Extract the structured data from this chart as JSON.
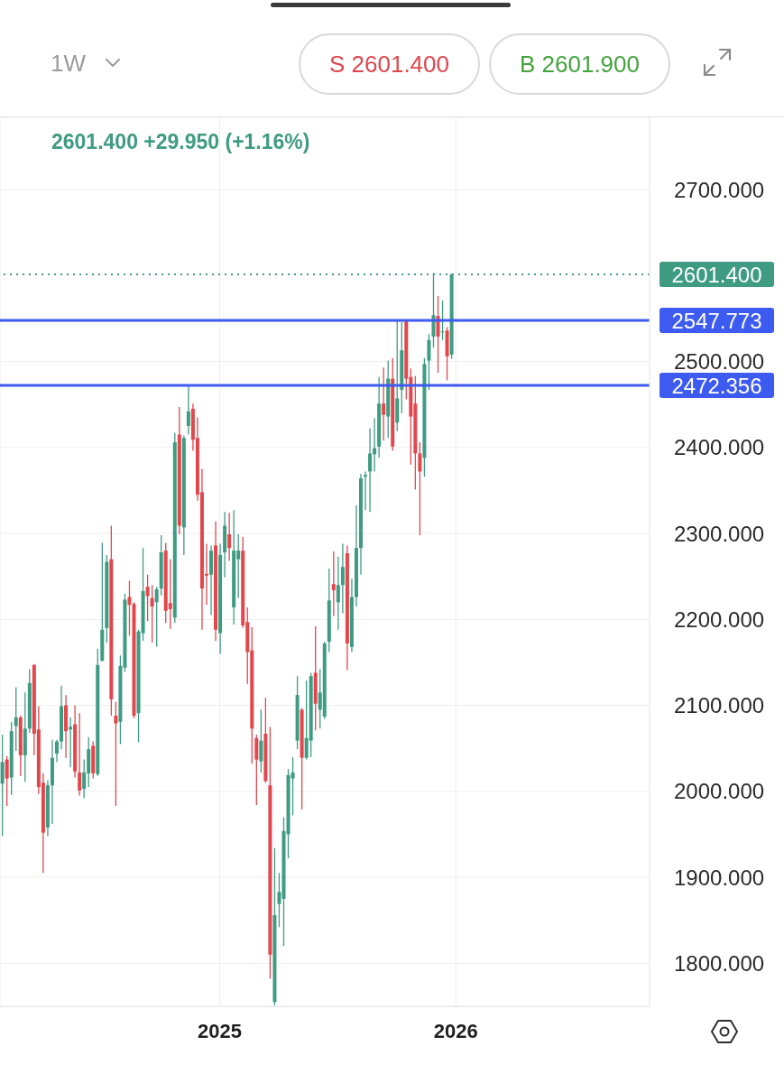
{
  "chart_data": {
    "type": "candlestick",
    "x": [
      "2024-02-05",
      "2024-02-12",
      "2024-02-19",
      "2024-02-26",
      "2024-03-04",
      "2024-03-11",
      "2024-03-18",
      "2024-03-25",
      "2024-04-01",
      "2024-04-08",
      "2024-04-15",
      "2024-04-22",
      "2024-04-29",
      "2024-05-06",
      "2024-05-13",
      "2024-05-20",
      "2024-05-27",
      "2024-06-03",
      "2024-06-10",
      "2024-06-17",
      "2024-06-24",
      "2024-07-01",
      "2024-07-08",
      "2024-07-15",
      "2024-07-22",
      "2024-07-29",
      "2024-08-05",
      "2024-08-12",
      "2024-08-19",
      "2024-08-26",
      "2024-09-02",
      "2024-09-09",
      "2024-09-16",
      "2024-09-23",
      "2024-09-30",
      "2024-10-07",
      "2024-10-14",
      "2024-10-21",
      "2024-10-28",
      "2024-11-04",
      "2024-11-11",
      "2024-11-18",
      "2024-11-25",
      "2024-12-02",
      "2024-12-09",
      "2024-12-16",
      "2024-12-23",
      "2024-12-30",
      "2025-01-06",
      "2025-01-13",
      "2025-01-20",
      "2025-01-27",
      "2025-02-03",
      "2025-02-10",
      "2025-02-17",
      "2025-02-24",
      "2025-03-03",
      "2025-03-10",
      "2025-03-17",
      "2025-03-24",
      "2025-03-31",
      "2025-04-07",
      "2025-04-14",
      "2025-04-21",
      "2025-04-28",
      "2025-05-05",
      "2025-05-12",
      "2025-05-19",
      "2025-05-26",
      "2025-06-02",
      "2025-06-09",
      "2025-06-16",
      "2025-06-23",
      "2025-06-30",
      "2025-07-07",
      "2025-07-14",
      "2025-07-21",
      "2025-07-28",
      "2025-08-04",
      "2025-08-11",
      "2025-08-18",
      "2025-08-25",
      "2025-09-01",
      "2025-09-08",
      "2025-09-15",
      "2025-09-22",
      "2025-09-29",
      "2025-10-06",
      "2025-10-13",
      "2025-10-20",
      "2025-10-27",
      "2025-11-03",
      "2025-11-10",
      "2025-11-17",
      "2025-11-24",
      "2025-12-01",
      "2025-12-08",
      "2025-12-15",
      "2025-12-22",
      "2025-12-29"
    ],
    "ohlc": [
      [
        2009,
        2066,
        1948,
        2034
      ],
      [
        2037,
        2041,
        1983,
        2015
      ],
      [
        2016,
        2081,
        1996,
        2070
      ],
      [
        2076,
        2121,
        2047,
        2086
      ],
      [
        2086,
        2088,
        2018,
        2042
      ],
      [
        2042,
        2115,
        2011,
        2073
      ],
      [
        2073,
        2142,
        2068,
        2126
      ],
      [
        2147,
        2148,
        2042,
        2067
      ],
      [
        2072,
        2099,
        1997,
        2005
      ],
      [
        2010,
        2021,
        1905,
        1952
      ],
      [
        1958,
        2013,
        1948,
        2007
      ],
      [
        2007,
        2060,
        1962,
        2039
      ],
      [
        2044,
        2060,
        2034,
        2058
      ],
      [
        2058,
        2123,
        2049,
        2099
      ],
      [
        2100,
        2112,
        2039,
        2070
      ],
      [
        2072,
        2086,
        2028,
        2075
      ],
      [
        2078,
        2100,
        2016,
        2023
      ],
      [
        2022,
        2091,
        1995,
        2001
      ],
      [
        2003,
        2037,
        1992,
        2022
      ],
      [
        2021,
        2063,
        2005,
        2049
      ],
      [
        2053,
        2058,
        2015,
        2021
      ],
      [
        2020,
        2166,
        2018,
        2147
      ],
      [
        2152,
        2289,
        2151,
        2188
      ],
      [
        2190,
        2275,
        2173,
        2267
      ],
      [
        2270,
        2309,
        2088,
        2107
      ],
      [
        2088,
        2104,
        1983,
        2079
      ],
      [
        2081,
        2158,
        2055,
        2146
      ],
      [
        2144,
        2230,
        2139,
        2223
      ],
      [
        2226,
        2245,
        2181,
        2217
      ],
      [
        2218,
        2220,
        2085,
        2088
      ],
      [
        2091,
        2188,
        2057,
        2186
      ],
      [
        2184,
        2283,
        2175,
        2233
      ],
      [
        2238,
        2252,
        2198,
        2227
      ],
      [
        2225,
        2240,
        2173,
        2215
      ],
      [
        2220,
        2238,
        2168,
        2235
      ],
      [
        2236,
        2298,
        2228,
        2278
      ],
      [
        2280,
        2289,
        2196,
        2210
      ],
      [
        2219,
        2270,
        2189,
        2212
      ],
      [
        2202,
        2417,
        2196,
        2406
      ],
      [
        2415,
        2447,
        2299,
        2309
      ],
      [
        2307,
        2414,
        2275,
        2411
      ],
      [
        2425,
        2472,
        2415,
        2442
      ],
      [
        2445,
        2451,
        2396,
        2409
      ],
      [
        2411,
        2435,
        2338,
        2345
      ],
      [
        2348,
        2375,
        2188,
        2236
      ],
      [
        2253,
        2288,
        2217,
        2251
      ],
      [
        2252,
        2286,
        2205,
        2280
      ],
      [
        2286,
        2314,
        2175,
        2188
      ],
      [
        2184,
        2288,
        2160,
        2275
      ],
      [
        2278,
        2325,
        2249,
        2309
      ],
      [
        2299,
        2324,
        2268,
        2283
      ],
      [
        2214,
        2327,
        2194,
        2280
      ],
      [
        2270,
        2299,
        2225,
        2280
      ],
      [
        2280,
        2296,
        2190,
        2193
      ],
      [
        2197,
        2214,
        2125,
        2162
      ],
      [
        2164,
        2191,
        2032,
        2073
      ],
      [
        2062,
        2066,
        1984,
        2037
      ],
      [
        2035,
        2095,
        2022,
        2059
      ],
      [
        2067,
        2109,
        2010,
        2012
      ],
      [
        2007,
        2075,
        1782,
        1810
      ],
      [
        1755,
        1934,
        1751,
        1856
      ],
      [
        1869,
        1905,
        1842,
        1883
      ],
      [
        1875,
        1970,
        1820,
        1954
      ],
      [
        1950,
        2026,
        1922,
        2019
      ],
      [
        2015,
        2040,
        1972,
        2022
      ],
      [
        2059,
        2134,
        2049,
        2112
      ],
      [
        2095,
        2097,
        1979,
        2039
      ],
      [
        2039,
        2129,
        2037,
        2062
      ],
      [
        2059,
        2138,
        2040,
        2134
      ],
      [
        2138,
        2192,
        2071,
        2102
      ],
      [
        2095,
        2142,
        2073,
        2115
      ],
      [
        2087,
        2174,
        2084,
        2172
      ],
      [
        2174,
        2259,
        2162,
        2222
      ],
      [
        2241,
        2279,
        2204,
        2234
      ],
      [
        2220,
        2273,
        2188,
        2240
      ],
      [
        2240,
        2288,
        2207,
        2261
      ],
      [
        2277,
        2286,
        2141,
        2172
      ],
      [
        2168,
        2247,
        2162,
        2226
      ],
      [
        2226,
        2333,
        2215,
        2283
      ],
      [
        2283,
        2369,
        2252,
        2364
      ],
      [
        2366,
        2372,
        2327,
        2368
      ],
      [
        2372,
        2422,
        2325,
        2393
      ],
      [
        2392,
        2434,
        2372,
        2399
      ],
      [
        2401,
        2482,
        2388,
        2451
      ],
      [
        2451,
        2493,
        2408,
        2438
      ],
      [
        2436,
        2501,
        2411,
        2480
      ],
      [
        2480,
        2504,
        2396,
        2401
      ],
      [
        2429,
        2548,
        2419,
        2457
      ],
      [
        2467,
        2546,
        2440,
        2513
      ],
      [
        2548,
        2549,
        2456,
        2480
      ],
      [
        2482,
        2492,
        2380,
        2436
      ],
      [
        2451,
        2483,
        2351,
        2393
      ],
      [
        2393,
        2406,
        2298,
        2372
      ],
      [
        2388,
        2504,
        2366,
        2497
      ],
      [
        2501,
        2532,
        2467,
        2525
      ],
      [
        2529,
        2603,
        2516,
        2554
      ],
      [
        2553,
        2576,
        2487,
        2529
      ],
      [
        2534,
        2571,
        2525,
        2535
      ],
      [
        2536,
        2540,
        2478,
        2506
      ],
      [
        2508,
        2602,
        2503,
        2601.4
      ]
    ],
    "colors": [
      "#3f9b82",
      "#e2474d",
      "#3f9b82",
      "#3f9b82",
      "#e2474d",
      "#3f9b82",
      "#3f9b82",
      "#e2474d",
      "#e2474d",
      "#e2474d",
      "#3f9b82",
      "#3f9b82",
      "#3f9b82",
      "#3f9b82",
      "#e2474d",
      "#3f9b82",
      "#e2474d",
      "#e2474d",
      "#3f9b82",
      "#3f9b82",
      "#e2474d",
      "#3f9b82",
      "#3f9b82",
      "#3f9b82",
      "#e2474d",
      "#e2474d",
      "#3f9b82",
      "#3f9b82",
      "#e2474d",
      "#e2474d",
      "#3f9b82",
      "#3f9b82",
      "#e2474d",
      "#e2474d",
      "#3f9b82",
      "#3f9b82",
      "#e2474d",
      "#e2474d",
      "#3f9b82",
      "#e2474d",
      "#3f9b82",
      "#3f9b82",
      "#e2474d",
      "#e2474d",
      "#e2474d",
      "#e2474d",
      "#3f9b82",
      "#e2474d",
      "#3f9b82",
      "#3f9b82",
      "#e2474d",
      "#3f9b82",
      "#3f9b82",
      "#e2474d",
      "#e2474d",
      "#e2474d",
      "#e2474d",
      "#3f9b82",
      "#e2474d",
      "#e2474d",
      "#3f9b82",
      "#3f9b82",
      "#3f9b82",
      "#3f9b82",
      "#3f9b82",
      "#3f9b82",
      "#e2474d",
      "#3f9b82",
      "#3f9b82",
      "#e2474d",
      "#3f9b82",
      "#3f9b82",
      "#3f9b82",
      "#e2474d",
      "#3f9b82",
      "#3f9b82",
      "#e2474d",
      "#3f9b82",
      "#3f9b82",
      "#3f9b82",
      "#3f9b82",
      "#3f9b82",
      "#3f9b82",
      "#3f9b82",
      "#e2474d",
      "#3f9b82",
      "#e2474d",
      "#3f9b82",
      "#3f9b82",
      "#e2474d",
      "#e2474d",
      "#e2474d",
      "#e2474d",
      "#3f9b82",
      "#3f9b82",
      "#3f9b82",
      "#e2474d",
      "#3f9b82",
      "#e2474d",
      "#3f9b82"
    ],
    "xlim": [
      "2024-02-02",
      "2026-10-31"
    ],
    "xticks": [
      {
        "value": "2025-01-06",
        "label": "2025"
      },
      {
        "value": "2026-01-05",
        "label": "2026"
      }
    ],
    "ylim": [
      1750,
      2784
    ],
    "yticks": [
      {
        "value": 1800,
        "label": "1800.000"
      },
      {
        "value": 1900,
        "label": "1900.000"
      },
      {
        "value": 2000,
        "label": "2000.000"
      },
      {
        "value": 2100,
        "label": "2100.000"
      },
      {
        "value": 2200,
        "label": "2200.000"
      },
      {
        "value": 2300,
        "label": "2300.000"
      },
      {
        "value": 2400,
        "label": "2400.000"
      },
      {
        "value": 2500,
        "label": "2500.000"
      },
      {
        "value": 2700,
        "label": "2700.000"
      }
    ],
    "grid": true,
    "ref_lines": [
      {
        "axis": "y",
        "value": 2601.4,
        "label": "2601.400",
        "color": "#3f9b82",
        "line_style": "dotted"
      },
      {
        "axis": "y",
        "value": 2547.773,
        "label": "2547.773",
        "color": "#3d5af1",
        "line_style": "solid"
      },
      {
        "axis": "y",
        "value": 2472.356,
        "label": "2472.356",
        "color": "#3d5af1",
        "line_style": "solid"
      }
    ],
    "annotations": [
      "2601.400 +29.950 (+1.16%)",
      "1W",
      "S 2601.400",
      "B 2601.900"
    ]
  }
}
